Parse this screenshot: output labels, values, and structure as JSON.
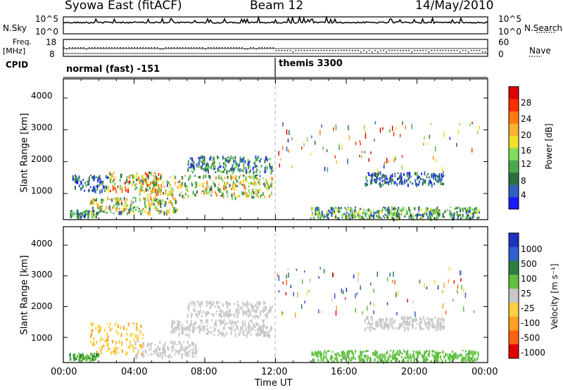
{
  "header": {
    "station": "Syowa East (fitACF)",
    "beam": "Beam 12",
    "date": "14/May/2010"
  },
  "noise_panel": {
    "left_label": "N.Sky",
    "right_label": "N.Search",
    "ticks": [
      "10^5",
      "10^0"
    ],
    "right_ticks": [
      "10^5",
      "10^0"
    ]
  },
  "freq_panel": {
    "left_label_1": "Freq.",
    "left_label_2": "[MHz]",
    "ticks": [
      "18",
      "8"
    ],
    "right_ticks": [
      "60",
      "0"
    ],
    "right_label": "Nave"
  },
  "cpid": {
    "label": "CPID",
    "segments": [
      {
        "name": "normal (fast) -151",
        "start_hour": 0
      },
      {
        "name": "themis 3300",
        "start_hour": 12
      }
    ]
  },
  "chart_data": [
    {
      "type": "heatmap",
      "panel": "power",
      "ylabel": "Slant Range [km]",
      "xlabel": "",
      "x_ticks": [
        "00:00",
        "04:00",
        "08:00",
        "12:00",
        "16:00",
        "20:00",
        "00:00"
      ],
      "y_ticks": [
        "1000",
        "2000",
        "3000",
        "4000"
      ],
      "xlim_hours": [
        0,
        24
      ],
      "ylim_km": [
        180,
        4600
      ],
      "colorbar": {
        "label": "Power [dB]",
        "ticks": [
          "4",
          "8",
          "12",
          "16",
          "20",
          "24",
          "28"
        ],
        "range": [
          0,
          30
        ],
        "colors": [
          "#1a1aff",
          "#3060c0",
          "#2e6e3e",
          "#4caa4c",
          "#7edc5a",
          "#f0e02a",
          "#ffb030",
          "#ff7a10",
          "#ff3000",
          "#e00000"
        ]
      },
      "regions": [
        {
          "t0": 0.3,
          "t1": 2.0,
          "r0": 300,
          "r1": 500,
          "level": 8
        },
        {
          "t0": 1.5,
          "t1": 6.5,
          "r0": 400,
          "r1": 900,
          "level": 14
        },
        {
          "t0": 2.5,
          "t1": 5.5,
          "r0": 1100,
          "r1": 1700,
          "level": 18
        },
        {
          "t0": 4.0,
          "t1": 11.8,
          "r0": 900,
          "r1": 1600,
          "level": 14
        },
        {
          "t0": 7.0,
          "t1": 11.8,
          "r0": 1700,
          "r1": 2200,
          "level": 8
        },
        {
          "t0": 0.5,
          "t1": 2.5,
          "r0": 1100,
          "r1": 1600,
          "level": 6
        },
        {
          "t0": 14.0,
          "t1": 23.5,
          "r0": 250,
          "r1": 600,
          "level": 10
        },
        {
          "t0": 17.0,
          "t1": 21.5,
          "r0": 1300,
          "r1": 1700,
          "level": 6
        }
      ]
    },
    {
      "type": "heatmap",
      "panel": "velocity",
      "ylabel": "Slant Range [km]",
      "xlabel": "Time UT",
      "x_ticks": [
        "00:00",
        "04:00",
        "08:00",
        "12:00",
        "16:00",
        "20:00",
        "00:00"
      ],
      "y_ticks": [
        "1000",
        "2000",
        "3000",
        "4000"
      ],
      "xlim_hours": [
        0,
        24
      ],
      "ylim_km": [
        180,
        4600
      ],
      "colorbar": {
        "label": "Velocity [m s⁻¹]",
        "ticks": [
          "1000",
          "500",
          "100",
          "25",
          "-25",
          "-100",
          "-500",
          "-1000"
        ],
        "range": [
          -1000,
          1000
        ],
        "colors": [
          "#2030c0",
          "#3060d0",
          "#2e7e3e",
          "#60c040",
          "#c8c8c8",
          "#ffd040",
          "#ffa020",
          "#ff6010",
          "#e00000"
        ]
      },
      "regions": [
        {
          "t0": 0.3,
          "t1": 2.0,
          "r0": 300,
          "r1": 500,
          "level": 300
        },
        {
          "t0": 1.5,
          "t1": 4.5,
          "r0": 500,
          "r1": 1500,
          "level": -300
        },
        {
          "t0": 4.0,
          "t1": 7.5,
          "r0": 400,
          "r1": 900,
          "level": 60
        },
        {
          "t0": 6.0,
          "t1": 11.8,
          "r0": 1100,
          "r1": 1600,
          "level": 0
        },
        {
          "t0": 7.0,
          "t1": 11.8,
          "r0": 1700,
          "r1": 2200,
          "level": 0
        },
        {
          "t0": 14.0,
          "t1": 23.5,
          "r0": 250,
          "r1": 600,
          "level": 200
        },
        {
          "t0": 17.0,
          "t1": 21.5,
          "r0": 1300,
          "r1": 1700,
          "level": 0
        }
      ]
    }
  ]
}
